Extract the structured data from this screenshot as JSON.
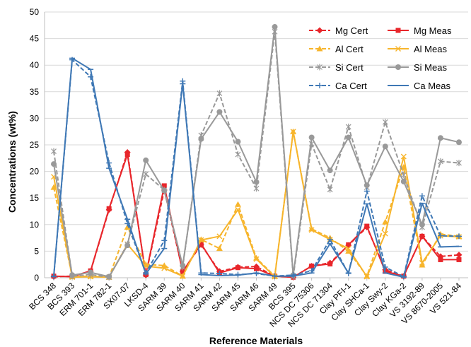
{
  "colors": {
    "mg": "#e8262b",
    "al": "#f7b52c",
    "si": "#999999",
    "ca": "#3f78b5",
    "grid": "#d9d9d9",
    "axis": "#bfbfbf"
  },
  "chart_data": {
    "type": "line",
    "xlabel": "Reference Materials",
    "ylabel": "Concentrations (wt%)",
    "ylim": [
      0,
      50
    ],
    "yticks": [
      0,
      5,
      10,
      15,
      20,
      25,
      30,
      35,
      40,
      45,
      50
    ],
    "grid": true,
    "legend_position": "top-right",
    "categories": [
      "BCS 348",
      "BCS 393",
      "ERM 701-1",
      "ERM 782-1",
      "SX07-07",
      "LKSD-4",
      "SARM 39",
      "SARM 40",
      "SARM 41",
      "SARM 42",
      "SARM 45",
      "SARM 46",
      "SARM 49",
      "BCS 395",
      "NCS DC 75306",
      "NCS DC 71304",
      "Clay PFI-1",
      "Clay SHCa-1",
      "Clay Swy-2",
      "Clay KGa-2",
      "VS 3192-89",
      "VS 8670-2005",
      "VS 521-84"
    ],
    "series": [
      {
        "name": "Mg Cert",
        "element": "mg",
        "style": "dashed",
        "marker": "diamond",
        "values": [
          0.2,
          0.3,
          1.2,
          12.8,
          23.6,
          0.5,
          16.5,
          1.2,
          6.2,
          1.2,
          2.0,
          2.1,
          0.3,
          0.1,
          2.2,
          2.8,
          6.1,
          9.5,
          1.5,
          0.3,
          7.8,
          4.0,
          4.3
        ]
      },
      {
        "name": "Mg Meas",
        "element": "mg",
        "style": "solid",
        "marker": "square",
        "values": [
          0.3,
          0.2,
          1.3,
          13.0,
          23.2,
          0.6,
          17.3,
          1.1,
          6.4,
          0.9,
          1.9,
          1.7,
          0.3,
          0.1,
          2.2,
          2.6,
          6.2,
          9.7,
          1.2,
          0.3,
          7.8,
          3.4,
          3.4
        ]
      },
      {
        "name": "Al Cert",
        "element": "al",
        "style": "dashed",
        "marker": "triangle",
        "values": [
          17.0,
          0.2,
          0.3,
          0.1,
          9.5,
          2.5,
          2.3,
          0.3,
          7.2,
          5.5,
          13.8,
          3.7,
          0.3,
          27.5,
          9.2,
          7.5,
          5.0,
          0.3,
          10.5,
          20.8,
          2.4,
          8.2,
          7.8
        ]
      },
      {
        "name": "Al Meas",
        "element": "al",
        "style": "solid",
        "marker": "x",
        "values": [
          19.0,
          0.1,
          0.2,
          0.1,
          6.3,
          2.2,
          1.8,
          0.3,
          7.1,
          7.8,
          12.8,
          3.5,
          0.2,
          27.5,
          9.0,
          7.2,
          5.5,
          0.2,
          8.3,
          22.8,
          2.8,
          7.9,
          7.7
        ]
      },
      {
        "name": "Si Cert",
        "element": "si",
        "style": "dashed",
        "marker": "asterisk",
        "values": [
          23.8,
          0.3,
          0.6,
          0.1,
          6.3,
          19.5,
          16.5,
          2.0,
          26.8,
          34.7,
          23.2,
          16.8,
          46.3,
          0.2,
          25.2,
          16.6,
          28.4,
          17.0,
          29.3,
          19.3,
          9.5,
          21.9,
          21.6
        ]
      },
      {
        "name": "Si Meas",
        "element": "si",
        "style": "solid",
        "marker": "circle",
        "values": [
          21.4,
          0.5,
          1.0,
          0.2,
          6.1,
          22.1,
          16.4,
          2.3,
          26.1,
          31.2,
          25.6,
          18.0,
          47.2,
          0.5,
          26.4,
          20.2,
          26.4,
          17.4,
          24.7,
          18.1,
          10.0,
          26.3,
          25.5
        ]
      },
      {
        "name": "Ca Cert",
        "element": "ca",
        "style": "dashed",
        "marker": "plus",
        "values": [
          0.2,
          41.0,
          37.8,
          21.6,
          10.2,
          0.9,
          7.0,
          37.0,
          0.9,
          0.8,
          0.6,
          0.8,
          0.3,
          0.5,
          1.3,
          7.2,
          0.8,
          16.3,
          2.0,
          0.2,
          15.4,
          7.9,
          7.8
        ]
      },
      {
        "name": "Ca Meas",
        "element": "ca",
        "style": "solid",
        "marker": "dash",
        "values": [
          0.3,
          41.3,
          39.2,
          20.6,
          11.0,
          0.7,
          5.5,
          36.5,
          0.6,
          0.4,
          0.5,
          0.9,
          0.3,
          0.3,
          0.9,
          6.4,
          0.9,
          13.9,
          0.9,
          0.1,
          14.0,
          5.8,
          5.9
        ]
      }
    ]
  }
}
